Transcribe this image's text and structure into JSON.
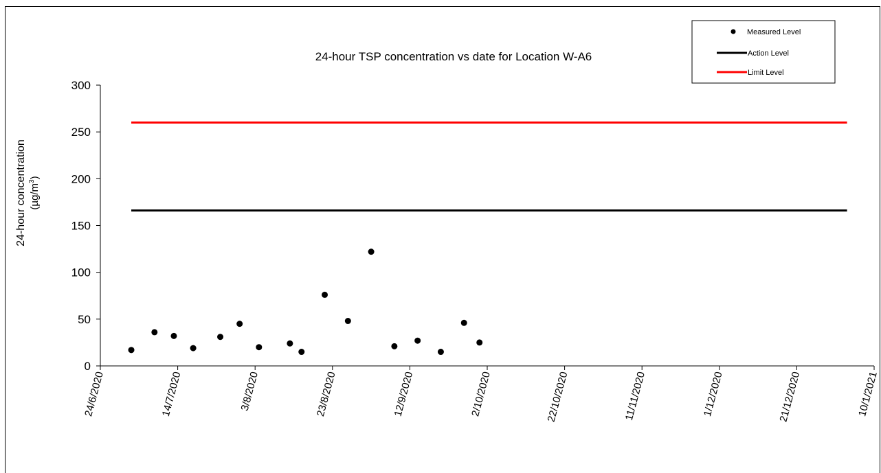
{
  "chart_data": {
    "type": "scatter",
    "title": "24-hour TSP concentration vs date for Location W-A6",
    "ylabel_line1": "24-hour concentration",
    "ylabel_line2_prefix": "(µg/m",
    "ylabel_line2_sup": "3",
    "ylabel_line2_suffix": ")",
    "ylim": [
      0,
      300
    ],
    "yticks": [
      "0",
      "50",
      "100",
      "150",
      "200",
      "250",
      "300"
    ],
    "xlim": [
      "2020-06-24",
      "2021-01-10"
    ],
    "xtick_labels": [
      "24/6/2020",
      "14/7/2020",
      "3/8/2020",
      "23/8/2020",
      "12/9/2020",
      "2/10/2020",
      "22/10/2020",
      "11/11/2020",
      "1/12/2020",
      "21/12/2020",
      "10/1/2021"
    ],
    "xtick_dates": [
      "2020-06-24",
      "2020-07-14",
      "2020-08-03",
      "2020-08-23",
      "2020-09-12",
      "2020-10-02",
      "2020-10-22",
      "2020-11-11",
      "2020-12-01",
      "2020-12-21",
      "2021-01-10"
    ],
    "grid": false,
    "legend_position": "top-right",
    "series": [
      {
        "name": "Measured Level",
        "kind": "points",
        "color": "#000000",
        "points": [
          {
            "x": "2020-07-02",
            "y": 17
          },
          {
            "x": "2020-07-08",
            "y": 36
          },
          {
            "x": "2020-07-13",
            "y": 32
          },
          {
            "x": "2020-07-18",
            "y": 19
          },
          {
            "x": "2020-07-25",
            "y": 31
          },
          {
            "x": "2020-07-30",
            "y": 45
          },
          {
            "x": "2020-08-04",
            "y": 20
          },
          {
            "x": "2020-08-12",
            "y": 24
          },
          {
            "x": "2020-08-15",
            "y": 15
          },
          {
            "x": "2020-08-21",
            "y": 76
          },
          {
            "x": "2020-08-27",
            "y": 48
          },
          {
            "x": "2020-09-02",
            "y": 122
          },
          {
            "x": "2020-09-08",
            "y": 21
          },
          {
            "x": "2020-09-14",
            "y": 27
          },
          {
            "x": "2020-09-20",
            "y": 15
          },
          {
            "x": "2020-09-26",
            "y": 46
          },
          {
            "x": "2020-09-30",
            "y": 25
          }
        ]
      },
      {
        "name": "Action Level",
        "kind": "line",
        "color": "#000000",
        "points": [
          {
            "x": "2020-07-02",
            "y": 166
          },
          {
            "x": "2021-01-03",
            "y": 166
          }
        ]
      },
      {
        "name": "Limit Level",
        "kind": "line",
        "color": "#ff0000",
        "points": [
          {
            "x": "2020-07-02",
            "y": 260
          },
          {
            "x": "2021-01-03",
            "y": 260
          }
        ]
      }
    ]
  }
}
